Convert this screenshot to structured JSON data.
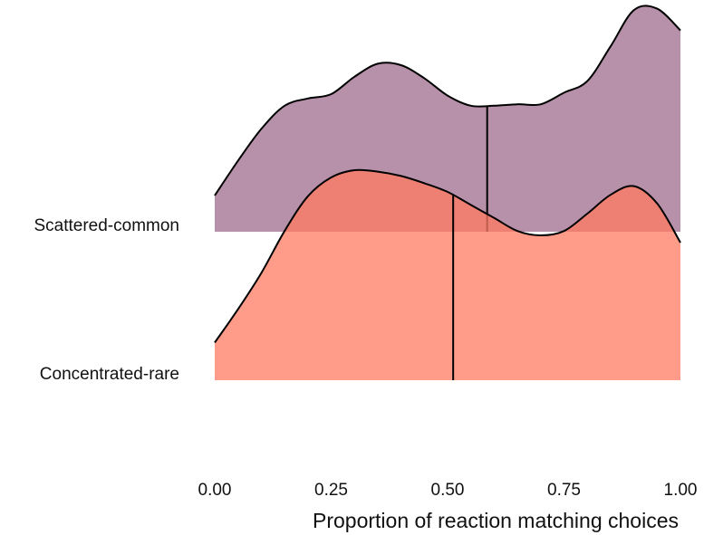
{
  "chart_data": {
    "type": "ridgeline",
    "xlabel": "Proportion of reaction matching choices",
    "xlim": [
      0,
      1
    ],
    "xticks": [
      0,
      0.25,
      0.5,
      0.75,
      1
    ],
    "xtick_labels": [
      "0.00",
      "0.25",
      "0.50",
      "0.75",
      "1.00"
    ],
    "categories": [
      "Scattered-common",
      "Concentrated-rare"
    ],
    "series": [
      {
        "category": "Scattered-common",
        "color": "#9b6788",
        "opacity": 0.72,
        "median": 0.585,
        "density": [
          [
            0.0,
            0.25
          ],
          [
            0.05,
            0.49
          ],
          [
            0.1,
            0.71
          ],
          [
            0.15,
            0.87
          ],
          [
            0.2,
            0.92
          ],
          [
            0.25,
            0.95
          ],
          [
            0.3,
            1.07
          ],
          [
            0.35,
            1.16
          ],
          [
            0.4,
            1.15
          ],
          [
            0.45,
            1.06
          ],
          [
            0.5,
            0.94
          ],
          [
            0.55,
            0.87
          ],
          [
            0.6,
            0.87
          ],
          [
            0.65,
            0.88
          ],
          [
            0.7,
            0.88
          ],
          [
            0.75,
            0.96
          ],
          [
            0.8,
            1.04
          ],
          [
            0.85,
            1.28
          ],
          [
            0.9,
            1.53
          ],
          [
            0.95,
            1.54
          ],
          [
            1.0,
            1.39
          ]
        ]
      },
      {
        "category": "Concentrated-rare",
        "color": "#ff7b62",
        "opacity": 0.75,
        "median": 0.512,
        "density": [
          [
            0.0,
            0.26
          ],
          [
            0.05,
            0.49
          ],
          [
            0.1,
            0.74
          ],
          [
            0.15,
            1.03
          ],
          [
            0.2,
            1.27
          ],
          [
            0.25,
            1.4
          ],
          [
            0.3,
            1.45
          ],
          [
            0.35,
            1.44
          ],
          [
            0.4,
            1.41
          ],
          [
            0.45,
            1.36
          ],
          [
            0.5,
            1.3
          ],
          [
            0.55,
            1.21
          ],
          [
            0.6,
            1.12
          ],
          [
            0.65,
            1.03
          ],
          [
            0.7,
            1.0
          ],
          [
            0.75,
            1.03
          ],
          [
            0.8,
            1.15
          ],
          [
            0.85,
            1.28
          ],
          [
            0.9,
            1.34
          ],
          [
            0.95,
            1.22
          ],
          [
            1.0,
            0.95
          ]
        ]
      }
    ]
  }
}
